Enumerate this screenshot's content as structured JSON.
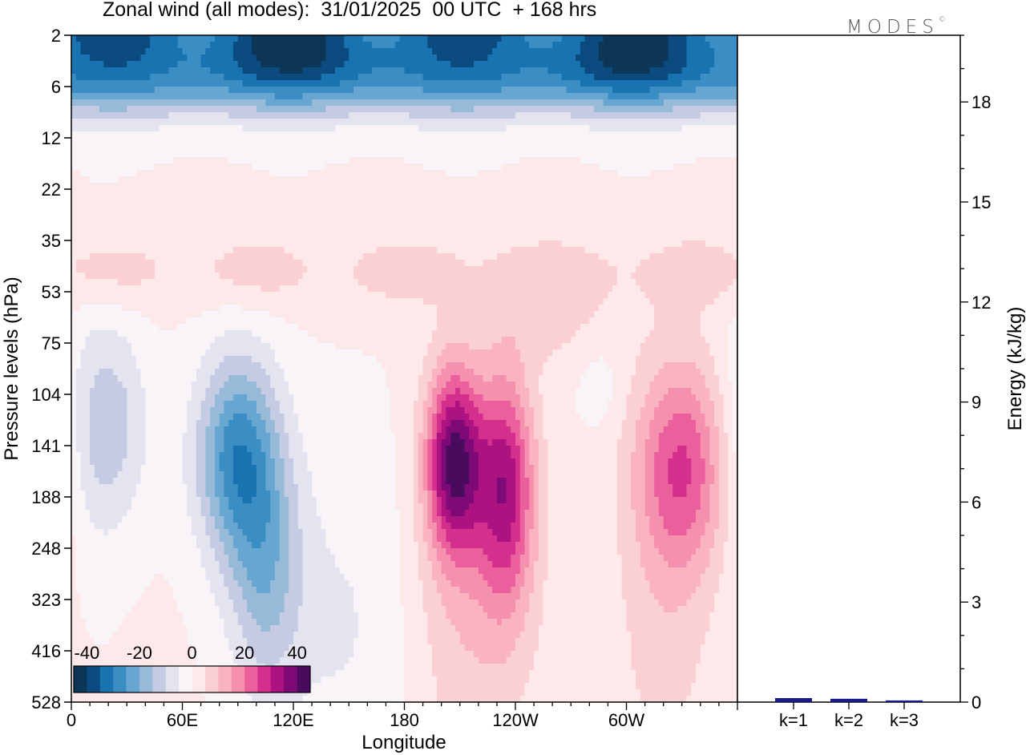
{
  "title": "Zonal wind (all modes):  31/01/2025  00 UTC  + 168 hrs",
  "brand": "MODES",
  "brand_mark": "©",
  "chart_data": [
    {
      "type": "heatmap",
      "title": "Zonal wind (all modes):  31/01/2025  00 UTC  + 168 hrs",
      "xlabel": "Longitude",
      "ylabel": "Pressure levels (hPa)",
      "x_ticks": [
        "0",
        "60E",
        "120E",
        "180",
        "120W",
        "60W"
      ],
      "x_tick_deg": [
        0,
        60,
        120,
        180,
        240,
        300
      ],
      "xlim_deg": [
        0,
        360
      ],
      "y_ticks": [
        "2",
        "6",
        "12",
        "22",
        "35",
        "53",
        "75",
        "104",
        "141",
        "188",
        "248",
        "323",
        "416",
        "528"
      ],
      "y_scale": "level index (top 2 hPa to bottom 528 hPa)",
      "colorbar": {
        "tick_labels": [
          "-40",
          "-20",
          "0",
          "20",
          "40"
        ],
        "range": [
          -45,
          45
        ],
        "step": 5,
        "colors": [
          "#0d3556",
          "#0b4b7f",
          "#1873b0",
          "#3a8ec3",
          "#67a6d0",
          "#98bad9",
          "#c4cbe3",
          "#e4e4f1",
          "#f9f4f8",
          "#fde9ea",
          "#fbd0d4",
          "#f9b3c1",
          "#f690af",
          "#ec5f9d",
          "#d52f8e",
          "#ac1380",
          "#7d0a77",
          "#4a0a5e"
        ]
      },
      "features": [
        {
          "kind": "easterlies",
          "lon": [
            0,
            360
          ],
          "level": "2-12 hPa",
          "min_value": -40
        },
        {
          "kind": "easterlies",
          "lon": [
            65,
            125
          ],
          "level": "104-248 hPa",
          "min_value": -30
        },
        {
          "kind": "easterlies",
          "lon": [
            5,
            40
          ],
          "level": "104-141 hPa",
          "min_value": -15
        },
        {
          "kind": "westerlies",
          "lon": [
            200,
            215
          ],
          "level": "104-188 hPa",
          "max_value": 40
        },
        {
          "kind": "westerlies",
          "lon": [
            225,
            245
          ],
          "level": "141-188 hPa",
          "max_value": 30
        },
        {
          "kind": "westerlies",
          "lon": [
            310,
            355
          ],
          "level": "104-188 hPa",
          "max_value": 25
        },
        {
          "kind": "westerlies",
          "lon": [
            0,
            360
          ],
          "level": "35-53 hPa",
          "max_value": 10
        }
      ]
    },
    {
      "type": "bar",
      "ylabel": "Energy (kJ/kg)",
      "categories": [
        "k=1",
        "k=2",
        "k=3"
      ],
      "values": [
        0.12,
        0.1,
        0.05
      ],
      "ylim": [
        0,
        20
      ],
      "y_ticks": [
        "0",
        "3",
        "6",
        "9",
        "12",
        "15",
        "18"
      ],
      "y_tick_values": [
        0,
        3,
        6,
        9,
        12,
        15,
        18
      ],
      "bar_color": "#1a1a8c"
    }
  ]
}
